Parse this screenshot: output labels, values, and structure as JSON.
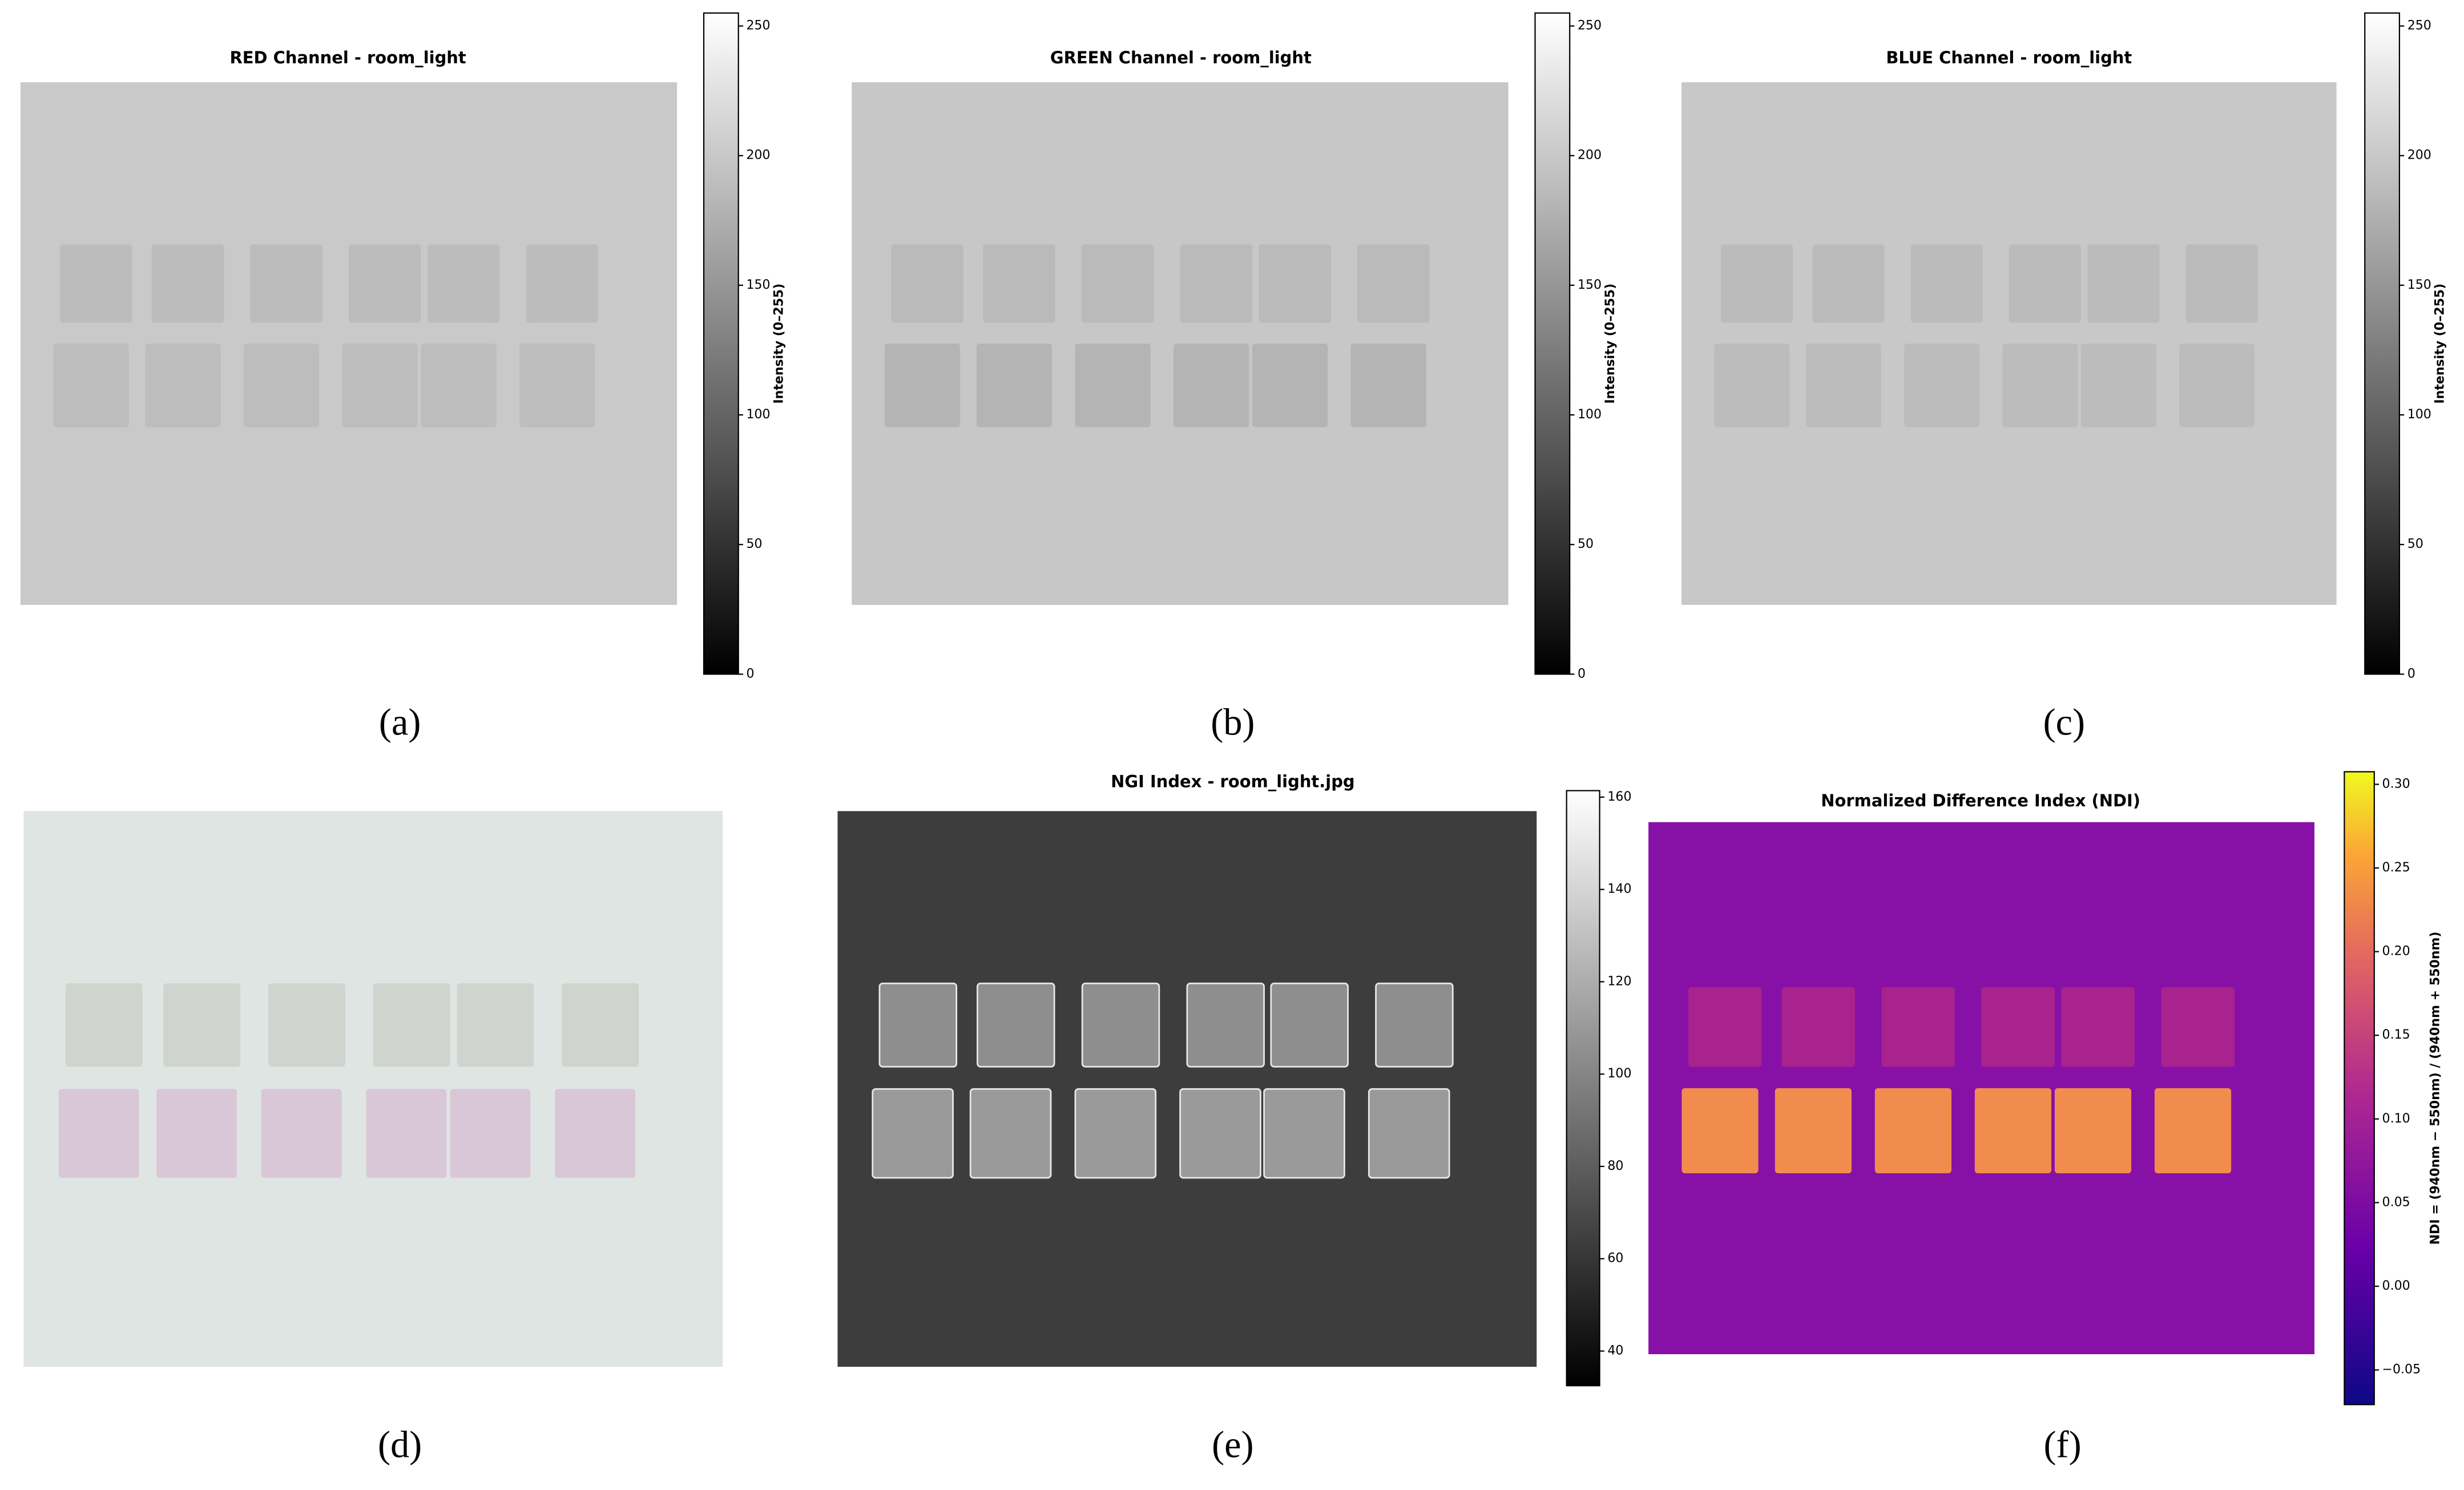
{
  "panels": [
    {
      "caption": "(a)",
      "title": "RED Channel - room_light",
      "colorbar": {
        "label": "Intensity (0–255)",
        "lim": [
          0,
          255
        ],
        "ticks": [
          0,
          50,
          100,
          150,
          200,
          250
        ]
      }
    },
    {
      "caption": "(b)",
      "title": "GREEN Channel - room_light",
      "colorbar": {
        "label": "Intensity (0–255)",
        "lim": [
          0,
          255
        ],
        "ticks": [
          0,
          50,
          100,
          150,
          200,
          250
        ]
      }
    },
    {
      "caption": "(c)",
      "title": "BLUE Channel - room_light",
      "colorbar": {
        "label": "Intensity (0–255)",
        "lim": [
          0,
          255
        ],
        "ticks": [
          0,
          50,
          100,
          150,
          200,
          250
        ]
      }
    },
    {
      "caption": "(d)"
    },
    {
      "caption": "(e)",
      "title": "NGI Index - room_light.jpg",
      "colorbar": {
        "lim": [
          32.5,
          161.4
        ],
        "ticks": [
          40,
          60,
          80,
          100,
          120,
          140,
          160
        ]
      }
    },
    {
      "caption": "(f)",
      "title": "Normalized Difference Index (NDI)",
      "colorbar": {
        "label": "NDI = (940nm − 550nm) / (940nm + 550nm)",
        "lim": [
          -0.0707,
          0.3075
        ],
        "ticks": [
          {
            "value": -0.05,
            "label": "−0.05"
          },
          {
            "value": 0,
            "label": "0.00"
          },
          0.05,
          {
            "value": 0.1,
            "label": "0.10"
          },
          0.15,
          {
            "value": 0.2,
            "label": "0.20"
          },
          0.25,
          {
            "value": 0.3,
            "label": "0.30"
          }
        ]
      }
    }
  ]
}
